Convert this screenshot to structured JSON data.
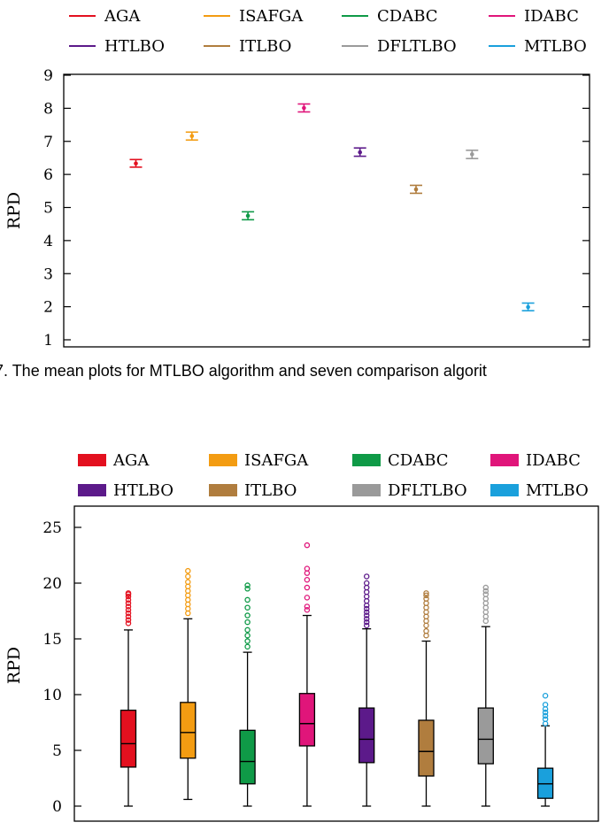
{
  "figure_caption": "7.  The mean plots for MTLBO algorithm and seven comparison algorit",
  "chart_data": [
    {
      "type": "scatter",
      "title": "",
      "xlabel": "",
      "ylabel": "RPD",
      "ylim": [
        1,
        9
      ],
      "yticks": [
        "1",
        "2",
        "3",
        "4",
        "5",
        "6",
        "7",
        "8",
        "9"
      ],
      "legend_position": "top",
      "series": [
        {
          "name": "AGA",
          "color": "#e3101f",
          "mean": 6.33,
          "low": 6.22,
          "high": 6.45
        },
        {
          "name": "ISAFGA",
          "color": "#f39c12",
          "mean": 7.16,
          "low": 7.04,
          "high": 7.28
        },
        {
          "name": "CDABC",
          "color": "#0f9a47",
          "mean": 4.75,
          "low": 4.63,
          "high": 4.87
        },
        {
          "name": "IDABC",
          "color": "#e0157a",
          "mean": 8.01,
          "low": 7.89,
          "high": 8.13
        },
        {
          "name": "HTLBO",
          "color": "#5c1a8a",
          "mean": 6.67,
          "low": 6.55,
          "high": 6.8
        },
        {
          "name": "ITLBO",
          "color": "#b07d3e",
          "mean": 5.55,
          "low": 5.43,
          "high": 5.67
        },
        {
          "name": "DFLTLBO",
          "color": "#9a9a9a",
          "mean": 6.61,
          "low": 6.48,
          "high": 6.73
        },
        {
          "name": "MTLBO",
          "color": "#1aa0dc",
          "mean": 1.99,
          "low": 1.88,
          "high": 2.11
        }
      ]
    },
    {
      "type": "box",
      "title": "",
      "xlabel": "",
      "ylabel": "RPD",
      "ylim": [
        0,
        25
      ],
      "yticks": [
        "0",
        "5",
        "10",
        "15",
        "20",
        "25"
      ],
      "legend_position": "top",
      "series": [
        {
          "name": "AGA",
          "color": "#e3101f",
          "min": 0,
          "q1": 3.5,
          "median": 5.6,
          "q3": 8.6,
          "max": 15.8,
          "outliers": [
            16.4,
            16.7,
            17.0,
            17.3,
            17.6,
            17.9,
            18.2,
            18.5,
            18.8,
            19.0,
            19.1
          ]
        },
        {
          "name": "ISAFGA",
          "color": "#f39c12",
          "min": 0.6,
          "q1": 4.3,
          "median": 6.6,
          "q3": 9.3,
          "max": 16.8,
          "outliers": [
            17.3,
            17.7,
            18.1,
            18.5,
            18.9,
            19.3,
            19.7,
            20.1,
            20.6,
            21.1
          ]
        },
        {
          "name": "CDABC",
          "color": "#0f9a47",
          "min": 0,
          "q1": 2.0,
          "median": 4.0,
          "q3": 6.8,
          "max": 13.8,
          "outliers": [
            14.3,
            14.8,
            15.3,
            15.8,
            16.5,
            17.1,
            17.8,
            18.5,
            19.5,
            19.8
          ]
        },
        {
          "name": "IDABC",
          "color": "#e0157a",
          "min": 0,
          "q1": 5.4,
          "median": 7.4,
          "q3": 10.1,
          "max": 17.1,
          "outliers": [
            17.6,
            17.9,
            18.7,
            19.6,
            20.3,
            20.9,
            21.3,
            23.4
          ]
        },
        {
          "name": "HTLBO",
          "color": "#5c1a8a",
          "min": 0,
          "q1": 3.9,
          "median": 6.0,
          "q3": 8.8,
          "max": 15.9,
          "outliers": [
            16.2,
            16.5,
            16.8,
            17.1,
            17.4,
            17.7,
            18.0,
            18.4,
            18.8,
            19.2,
            19.6,
            20.0,
            20.6
          ]
        },
        {
          "name": "ITLBO",
          "color": "#b07d3e",
          "min": 0,
          "q1": 2.7,
          "median": 4.9,
          "q3": 7.7,
          "max": 14.8,
          "outliers": [
            15.3,
            15.7,
            16.2,
            16.6,
            17.0,
            17.4,
            17.8,
            18.2,
            18.6,
            18.9,
            19.1
          ]
        },
        {
          "name": "DFLTLBO",
          "color": "#9a9a9a",
          "min": 0,
          "q1": 3.8,
          "median": 6.0,
          "q3": 8.8,
          "max": 16.1,
          "outliers": [
            16.6,
            17.0,
            17.4,
            17.8,
            18.2,
            18.6,
            19.0,
            19.3,
            19.6
          ]
        },
        {
          "name": "MTLBO",
          "color": "#1aa0dc",
          "min": 0,
          "q1": 0.7,
          "median": 2.0,
          "q3": 3.4,
          "max": 7.2,
          "outliers": [
            7.4,
            7.8,
            8.1,
            8.4,
            8.7,
            9.1,
            9.9
          ]
        }
      ]
    }
  ]
}
